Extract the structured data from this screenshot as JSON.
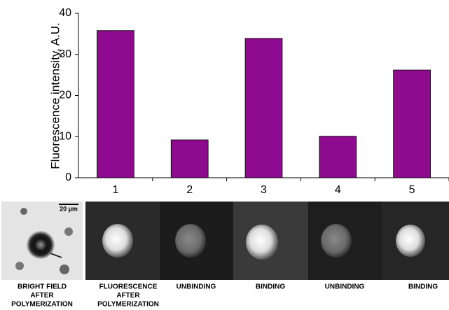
{
  "chart_data": {
    "type": "bar",
    "y_label": "Fluorescence intensity, A.U.",
    "categories": [
      "1",
      "2",
      "3",
      "4",
      "5"
    ],
    "values": [
      35.8,
      9.2,
      33.9,
      10.1,
      26.2
    ],
    "color": "#8e0a8e",
    "ylim": [
      0,
      40
    ],
    "yticks": [
      0,
      10,
      20,
      30,
      40
    ],
    "grid": false
  },
  "images": {
    "scale_bar_label": "20 µm",
    "captions": [
      [
        "BRIGHT FIELD",
        "AFTER",
        "POLYMERIZATION"
      ],
      [
        "FLUORESCENCE",
        "AFTER",
        "POLYMERIZATION"
      ],
      [
        "UNBINDING"
      ],
      [
        "BINDING"
      ],
      [
        "UNBINDING"
      ],
      [
        "BINDING"
      ]
    ]
  }
}
